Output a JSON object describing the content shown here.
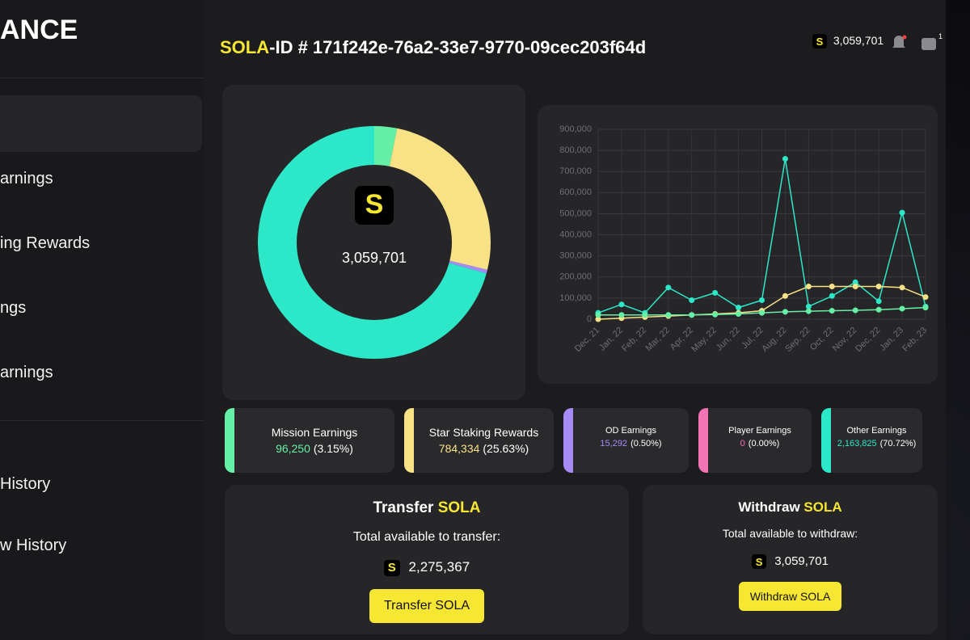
{
  "sidebar": {
    "brand": "ANCE",
    "nav": [
      "arnings",
      "ing Rewards",
      "ngs",
      "arnings",
      "History",
      "w History"
    ]
  },
  "header": {
    "id_prefix": "SOLA",
    "id_text": "-ID # 171f242e-76a2-33e7-9770-09cec203f64d",
    "balance": "3,059,701",
    "wallet_count": "1"
  },
  "icon_letter": "S",
  "donut": {
    "center_label": "3,059,701"
  },
  "line_chart": {
    "type": "line",
    "categories": [
      "Dec, 21",
      "Jan, 22",
      "Feb, 22",
      "Mar, 22",
      "Apr, 22",
      "May, 22",
      "Jun, 22",
      "Jul, 22",
      "Aug, 22",
      "Sep, 22",
      "Oct, 22",
      "Nov, 22",
      "Dec, 22",
      "Jan, 23",
      "Feb, 23"
    ],
    "series": [
      {
        "color": "#2de8c8",
        "values": [
          30000,
          70000,
          30000,
          150000,
          90000,
          125000,
          55000,
          90000,
          760000,
          60000,
          110000,
          175000,
          85000,
          505000,
          60000
        ]
      },
      {
        "color": "#f9e286",
        "values": [
          0,
          5000,
          10000,
          15000,
          20000,
          25000,
          30000,
          40000,
          110000,
          155000,
          155000,
          155000,
          155000,
          150000,
          105000
        ]
      },
      {
        "color": "#66f0a6",
        "values": [
          20000,
          20000,
          20000,
          20000,
          20000,
          22000,
          25000,
          30000,
          35000,
          38000,
          40000,
          42000,
          45000,
          50000,
          55000
        ]
      }
    ],
    "ylim": [
      0,
      900000
    ],
    "yticks": [
      0,
      {
        "value": 100000,
        "label": "100,000"
      },
      {
        "value": 200000,
        "label": "200,000"
      },
      {
        "value": 300000,
        "label": "300,000"
      },
      {
        "value": 400000,
        "label": "400,000"
      },
      {
        "value": 500000,
        "label": "500,000"
      },
      {
        "value": 600000,
        "label": "600,000"
      },
      {
        "value": 700000,
        "label": "700,000"
      },
      {
        "value": 800000,
        "label": "800,000"
      },
      {
        "value": 900000,
        "label": "900,000"
      }
    ],
    "grid": true
  },
  "stats": [
    {
      "title": "Mission Earnings",
      "value": 96250,
      "value_label": "96,250",
      "percent_label": "(3.15%)",
      "color": "#66f0a6"
    },
    {
      "title": "Star Staking Rewards",
      "value": 784334,
      "value_label": "784,334",
      "percent_label": "(25.63%)",
      "color": "#f9e286"
    },
    {
      "title": "OD Earnings",
      "value": 15292,
      "value_label": "15,292",
      "percent_label": "(0.50%)",
      "color": "#a78bfa"
    },
    {
      "title": "Player Earnings",
      "value": 0,
      "value_label": "0",
      "percent_label": "(0.00%)",
      "color": "#f472b6"
    },
    {
      "title": "Other Earnings",
      "value": 2163825,
      "value_label": "2,163,825",
      "percent_label": "(70.72%)",
      "color": "#2de8c8"
    }
  ],
  "transfer": {
    "title": "Transfer",
    "token": "SOLA",
    "subtitle": "Total available to transfer:",
    "amount": "2,275,367",
    "button": "Transfer SOLA"
  },
  "withdraw": {
    "title": "Withdraw",
    "token": "SOLA",
    "subtitle": "Total available to withdraw:",
    "amount": "3,059,701",
    "button": "Withdraw SOLA"
  }
}
